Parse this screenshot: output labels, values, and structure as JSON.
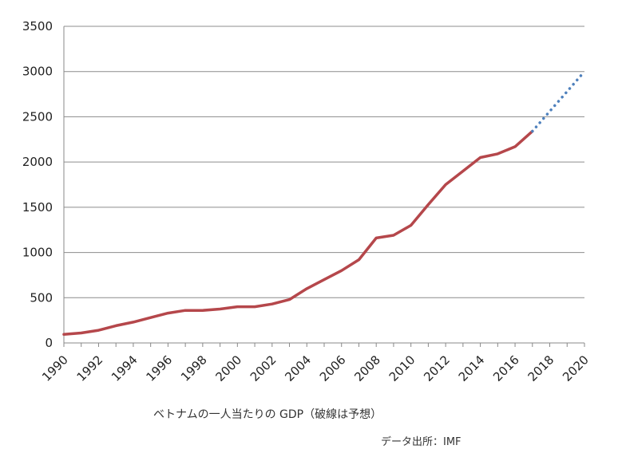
{
  "chart_data": {
    "type": "line",
    "title": "",
    "xlabel": "",
    "ylabel": "",
    "xlim": [
      1990,
      2020
    ],
    "ylim": [
      0,
      3500
    ],
    "yticks": [
      0,
      500,
      1000,
      1500,
      2000,
      2500,
      3000,
      3500
    ],
    "xticks": [
      1990,
      1992,
      1994,
      1996,
      1998,
      2000,
      2002,
      2004,
      2006,
      2008,
      2010,
      2012,
      2014,
      2016,
      2018,
      2020
    ],
    "grid": "horizontal",
    "legend": "none",
    "series": [
      {
        "style": "solid",
        "color": "#b5474b",
        "x": [
          1990,
          1991,
          1992,
          1993,
          1994,
          1995,
          1996,
          1997,
          1998,
          1999,
          2000,
          2001,
          2002,
          2003,
          2004,
          2005,
          2006,
          2007,
          2008,
          2009,
          2010,
          2011,
          2012,
          2013,
          2014,
          2015,
          2016,
          2017
        ],
        "y": [
          95,
          110,
          140,
          190,
          230,
          280,
          330,
          360,
          360,
          375,
          400,
          400,
          430,
          480,
          600,
          700,
          800,
          920,
          1160,
          1190,
          1300,
          1530,
          1750,
          1900,
          2050,
          2090,
          2170,
          2340
        ]
      },
      {
        "style": "dotted",
        "color": "#4f81bd",
        "x": [
          2017,
          2018,
          2019,
          2020
        ],
        "y": [
          2340,
          2560,
          2780,
          3000
        ]
      }
    ]
  },
  "caption": "ベトナムの一人当たりの GDP（破線は予想）",
  "source": "データ出所：IMF"
}
